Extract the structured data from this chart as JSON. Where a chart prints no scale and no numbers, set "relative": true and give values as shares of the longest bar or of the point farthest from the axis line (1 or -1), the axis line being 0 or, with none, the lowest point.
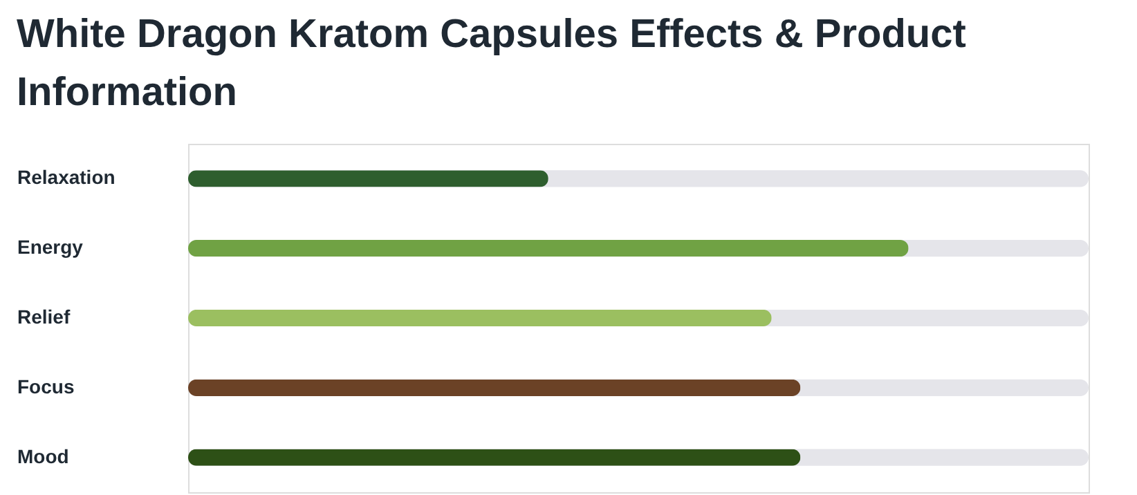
{
  "chart_data": {
    "type": "bar",
    "orientation": "horizontal",
    "relative": true,
    "title": "White Dragon Kratom Capsules Effects & Product Information",
    "categories": [
      "Relaxation",
      "Energy",
      "Relief",
      "Focus",
      "Mood"
    ],
    "values": [
      0.5,
      1,
      0.81,
      0.85,
      0.85
    ],
    "colors": [
      "#2e5e2e",
      "#70a244",
      "#9bbf60",
      "#6b4226",
      "#2d5016"
    ]
  }
}
